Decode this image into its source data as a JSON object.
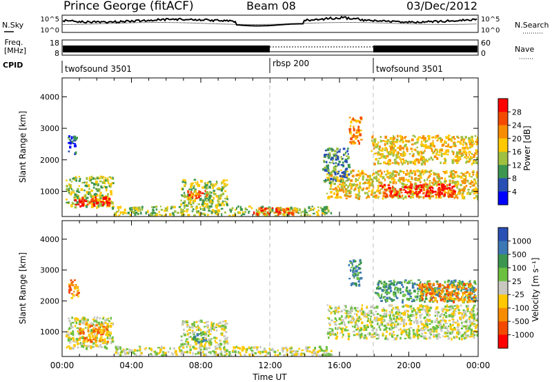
{
  "header": {
    "station": "Prince George (fitACF)",
    "beam": "Beam 08",
    "date": "03/Dec/2012"
  },
  "status_panels": {
    "nsky_label": "N.Sky",
    "nsearch_label": "N.Search",
    "freq_label_1": "Freq.",
    "freq_label_2": "[MHz]",
    "nave_label": "Nave",
    "cpid_label": "CPID",
    "noise_left_ticks": [
      "10^5",
      "10^0"
    ],
    "noise_right_ticks": [
      "10^5",
      "10^0"
    ],
    "freq_ticks": [
      "18",
      "8"
    ],
    "nave_ticks": [
      "60",
      "0"
    ],
    "cpid_segments": [
      {
        "label": "twofsound 3501",
        "start_h": 0,
        "end_h": 12
      },
      {
        "label": "rbsp 200",
        "start_h": 12,
        "end_h": 18
      },
      {
        "label": "twofsound 3501",
        "start_h": 18,
        "end_h": 24
      }
    ]
  },
  "chart_data": [
    {
      "type": "heatmap",
      "name": "power",
      "ylabel": "Slant Range [km]",
      "xlim": [
        0,
        24
      ],
      "ylim": [
        200,
        4600
      ],
      "yticks": [
        1000,
        2000,
        3000,
        4000
      ],
      "colorbar_label": "Power [dB]",
      "colorbar_ticks": [
        "28",
        "24",
        "20",
        "16",
        "12",
        "8",
        "4"
      ],
      "colorbar_colors": [
        "#ff0000",
        "#f44a00",
        "#f88c00",
        "#ffc800",
        "#a0c040",
        "#3c9650",
        "#2850b4",
        "#0000ff"
      ],
      "echo_regions": [
        {
          "x0": 0.2,
          "x1": 2.9,
          "y0": 500,
          "y1": 1500,
          "level": 3
        },
        {
          "x0": 0.7,
          "x1": 2.7,
          "y0": 550,
          "y1": 850,
          "level": 7
        },
        {
          "x0": 0.3,
          "x1": 0.8,
          "y0": 2200,
          "y1": 2800,
          "level": 1
        },
        {
          "x0": 6.8,
          "x1": 9.5,
          "y0": 550,
          "y1": 1400,
          "level": 3
        },
        {
          "x0": 7.2,
          "x1": 8.3,
          "y0": 800,
          "y1": 1050,
          "level": 6
        },
        {
          "x0": 3.0,
          "x1": 15.5,
          "y0": 250,
          "y1": 550,
          "level": 3
        },
        {
          "x0": 11.0,
          "x1": 13.6,
          "y0": 300,
          "y1": 500,
          "level": 6
        },
        {
          "x0": 15.2,
          "x1": 24.0,
          "y0": 800,
          "y1": 1700,
          "level": 4
        },
        {
          "x0": 18.3,
          "x1": 22.6,
          "y0": 850,
          "y1": 1250,
          "level": 7
        },
        {
          "x0": 17.8,
          "x1": 24.0,
          "y0": 1900,
          "y1": 2800,
          "level": 4
        },
        {
          "x0": 16.5,
          "x1": 17.2,
          "y0": 2500,
          "y1": 3400,
          "level": 5
        },
        {
          "x0": 15.0,
          "x1": 16.5,
          "y0": 1300,
          "y1": 2400,
          "level": 2
        }
      ]
    },
    {
      "type": "heatmap",
      "name": "velocity",
      "ylabel": "Slant Range [km]",
      "xlabel": "Time UT",
      "xlim": [
        0,
        24
      ],
      "ylim": [
        200,
        4600
      ],
      "yticks": [
        1000,
        2000,
        3000,
        4000
      ],
      "xticks": [
        "00:00",
        "04:00",
        "08:00",
        "12:00",
        "16:00",
        "20:00",
        "00:00"
      ],
      "colorbar_label": "Velocity [m s⁻¹]",
      "colorbar_ticks": [
        "1000",
        "500",
        "100",
        "25",
        "-25",
        "-100",
        "-500",
        "-1000"
      ],
      "colorbar_colors": [
        "#2850b4",
        "#3c78b4",
        "#3c9650",
        "#6cc040",
        "#c8c8c0",
        "#ffc800",
        "#f88c00",
        "#f44a00",
        "#ff0000"
      ],
      "echo_regions": [
        {
          "x0": 0.2,
          "x1": 2.9,
          "y0": 500,
          "y1": 1500,
          "level": 4
        },
        {
          "x0": 0.9,
          "x1": 2.6,
          "y0": 700,
          "y1": 1300,
          "level": 6
        },
        {
          "x0": 0.3,
          "x1": 0.9,
          "y0": 2100,
          "y1": 2700,
          "level": 6
        },
        {
          "x0": 6.8,
          "x1": 9.5,
          "y0": 550,
          "y1": 1400,
          "level": 4
        },
        {
          "x0": 7.4,
          "x1": 8.3,
          "y0": 700,
          "y1": 1000,
          "level": 2
        },
        {
          "x0": 3.0,
          "x1": 15.5,
          "y0": 250,
          "y1": 550,
          "level": 4
        },
        {
          "x0": 15.2,
          "x1": 24.0,
          "y0": 800,
          "y1": 1900,
          "level": 4
        },
        {
          "x0": 18.0,
          "x1": 23.8,
          "y0": 2000,
          "y1": 2700,
          "level": 2
        },
        {
          "x0": 20.5,
          "x1": 23.8,
          "y0": 2000,
          "y1": 2600,
          "level": 6
        },
        {
          "x0": 16.5,
          "x1": 17.2,
          "y0": 2500,
          "y1": 3400,
          "level": 2
        }
      ]
    }
  ]
}
